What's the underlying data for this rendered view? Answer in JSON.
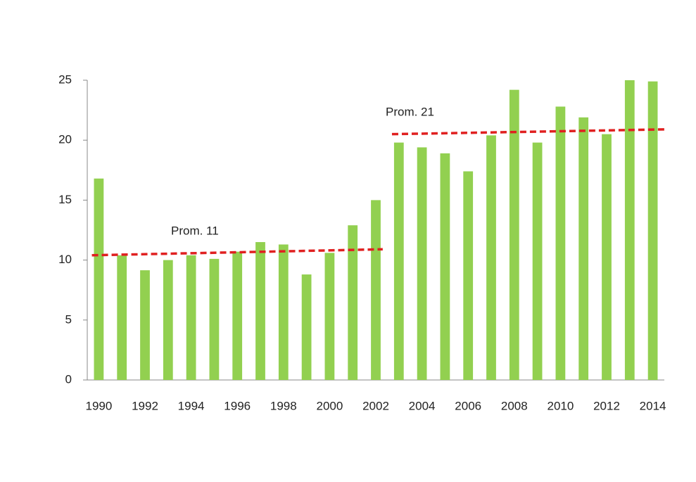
{
  "chart_data": {
    "type": "bar",
    "x": [
      1990,
      1991,
      1992,
      1993,
      1994,
      1995,
      1996,
      1997,
      1998,
      1999,
      2000,
      2001,
      2002,
      2003,
      2004,
      2005,
      2006,
      2007,
      2008,
      2009,
      2010,
      2011,
      2012,
      2013,
      2014
    ],
    "values": [
      16.8,
      10.4,
      9.15,
      10.0,
      10.4,
      10.1,
      10.7,
      11.5,
      11.3,
      8.8,
      10.6,
      12.9,
      15.0,
      19.8,
      19.4,
      18.9,
      17.4,
      20.4,
      24.2,
      19.8,
      22.8,
      21.9,
      20.5,
      25.0,
      24.9
    ],
    "color": "#92d050",
    "xlim": [
      1989.5,
      2014.5
    ],
    "xticks": [
      1990,
      1992,
      1994,
      1996,
      1998,
      2000,
      2002,
      2004,
      2006,
      2008,
      2010,
      2012,
      2014
    ],
    "ylim": [
      0,
      25
    ],
    "yticks": [
      0,
      5,
      10,
      15,
      20,
      25
    ],
    "trend_lines": [
      {
        "x": [
          1989.7,
          2002.3
        ],
        "y": [
          10.4,
          10.9
        ],
        "color": "#e02020"
      },
      {
        "x": [
          2002.7,
          2014.5
        ],
        "y": [
          20.5,
          20.9
        ],
        "color": "#e02020"
      }
    ],
    "annotations": [
      "Prom. 11",
      "Prom. 21"
    ]
  }
}
